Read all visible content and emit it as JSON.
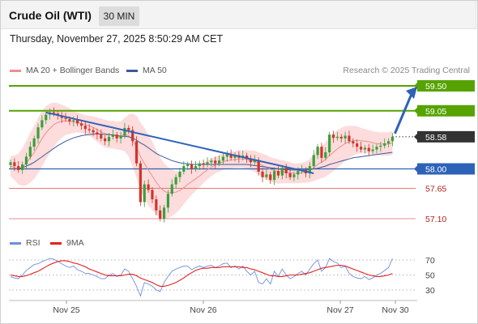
{
  "header": {
    "title": "Crude Oil (WTI)",
    "timeframe": "30 MIN"
  },
  "datetime": "Thursday, November 27, 2025 8:50:29 AM CET",
  "legend": {
    "ma20": "MA 20 + Bollinger Bands",
    "ma50": "MA 50",
    "credit": "Research © 2025 Trading Central"
  },
  "rsi_legend": {
    "rsi": "RSI",
    "ma9": "9MA"
  },
  "colors": {
    "resistance": "#56a300",
    "support": "#2e62b8",
    "secondary": "#e06666",
    "current": "#333333",
    "bull": "#3c9e3c",
    "bear": "#d0342c",
    "ma20": "#ee8f8f",
    "ma50": "#3d5a99",
    "band": "#fbd3d3",
    "rsi": "#6d8ede",
    "rsi_ma": "#e22222",
    "arrow": "#2e62b8"
  },
  "chart_data": {
    "type": "candlestick",
    "price_range": [
      56.9,
      59.7
    ],
    "levels": [
      {
        "label": "59.50",
        "value": 59.5,
        "kind": "resistance"
      },
      {
        "label": "59.05",
        "value": 59.05,
        "kind": "resistance"
      },
      {
        "label": "58.58",
        "value": 58.58,
        "kind": "current"
      },
      {
        "label": "58.00",
        "value": 58.0,
        "kind": "support"
      },
      {
        "label": "57.65",
        "value": 57.65,
        "kind": "secondary"
      },
      {
        "label": "57.10",
        "value": 57.1,
        "kind": "secondary"
      }
    ],
    "x_labels": [
      "Nov 25",
      "Nov 26",
      "Nov 27",
      "Nov 30"
    ],
    "closes": [
      58.12,
      58.05,
      57.98,
      58.08,
      58.22,
      58.4,
      58.55,
      58.75,
      58.88,
      58.98,
      59.02,
      59.0,
      58.96,
      58.92,
      58.9,
      58.86,
      58.88,
      58.82,
      58.78,
      58.72,
      58.7,
      58.66,
      58.62,
      58.55,
      58.5,
      58.58,
      58.62,
      58.55,
      58.6,
      58.74,
      58.7,
      58.5,
      58.1,
      57.4,
      57.72,
      57.62,
      57.45,
      57.25,
      57.1,
      57.3,
      57.55,
      57.72,
      57.85,
      57.95,
      58.05,
      58.08,
      58.0,
      58.05,
      58.1,
      58.08,
      58.12,
      58.15,
      58.1,
      58.15,
      58.22,
      58.26,
      58.2,
      58.25,
      58.2,
      58.24,
      58.18,
      58.12,
      58.16,
      57.95,
      57.85,
      57.9,
      57.8,
      57.96,
      57.88,
      58.02,
      57.92,
      57.85,
      57.9,
      57.96,
      57.98,
      57.92,
      58.05,
      58.25,
      58.4,
      58.2,
      58.3,
      58.62,
      58.56,
      58.58,
      58.55,
      58.6,
      58.5,
      58.46,
      58.4,
      58.35,
      58.38,
      58.32,
      58.35,
      58.4,
      58.42,
      58.46,
      58.5,
      58.58
    ],
    "ma20": [
      58.05,
      58.02,
      58.0,
      58.03,
      58.1,
      58.2,
      58.3,
      58.42,
      58.55,
      58.65,
      58.73,
      58.8,
      58.84,
      58.86,
      58.87,
      58.86,
      58.85,
      58.84,
      58.82,
      58.8,
      58.78,
      58.75,
      58.71,
      58.67,
      58.64,
      58.62,
      58.62,
      58.6,
      58.6,
      58.62,
      58.6,
      58.52,
      58.4,
      58.22,
      58.1,
      57.98,
      57.87,
      57.76,
      57.66,
      57.6,
      57.57,
      57.57,
      57.58,
      57.61,
      57.66,
      57.72,
      57.77,
      57.82,
      57.87,
      57.93,
      57.98,
      58.03,
      58.07,
      58.1,
      58.13,
      58.15,
      58.16,
      58.17,
      58.18,
      58.18,
      58.17,
      58.15,
      58.14,
      58.1,
      58.06,
      58.03,
      57.99,
      57.97,
      57.95,
      57.95,
      57.94,
      57.93,
      57.92,
      57.92,
      57.93,
      57.94,
      57.97,
      58.02,
      58.08,
      58.12,
      58.17,
      58.24,
      58.3,
      58.36,
      58.41,
      58.46,
      58.49,
      58.51,
      58.52,
      58.51,
      58.5,
      58.49,
      58.47,
      58.46,
      58.45,
      58.45,
      58.45,
      58.47
    ],
    "bb_width": [
      0.18,
      0.22,
      0.28,
      0.34,
      0.4,
      0.45,
      0.48,
      0.5,
      0.5,
      0.48,
      0.45,
      0.4,
      0.35,
      0.3,
      0.26,
      0.23,
      0.2,
      0.18,
      0.17,
      0.17,
      0.18,
      0.2,
      0.22,
      0.24,
      0.25,
      0.25,
      0.25,
      0.25,
      0.26,
      0.3,
      0.38,
      0.48,
      0.56,
      0.62,
      0.64,
      0.64,
      0.62,
      0.58,
      0.55,
      0.5,
      0.46,
      0.42,
      0.38,
      0.34,
      0.3,
      0.27,
      0.24,
      0.22,
      0.2,
      0.18,
      0.17,
      0.16,
      0.15,
      0.15,
      0.15,
      0.15,
      0.15,
      0.15,
      0.16,
      0.16,
      0.17,
      0.18,
      0.19,
      0.2,
      0.21,
      0.22,
      0.22,
      0.22,
      0.22,
      0.21,
      0.2,
      0.19,
      0.18,
      0.18,
      0.18,
      0.19,
      0.21,
      0.24,
      0.27,
      0.29,
      0.31,
      0.33,
      0.34,
      0.34,
      0.33,
      0.31,
      0.29,
      0.27,
      0.25,
      0.23,
      0.22,
      0.21,
      0.21,
      0.21,
      0.21,
      0.21,
      0.21,
      0.22
    ],
    "ma50": [
      58.0,
      58.0,
      58.0,
      58.02,
      58.05,
      58.08,
      58.12,
      58.17,
      58.22,
      58.27,
      58.32,
      58.37,
      58.42,
      58.46,
      58.5,
      58.53,
      58.56,
      58.58,
      58.6,
      58.61,
      58.62,
      58.63,
      58.63,
      58.63,
      58.62,
      58.62,
      58.61,
      58.6,
      58.59,
      58.59,
      58.58,
      58.56,
      58.52,
      58.47,
      58.43,
      58.38,
      58.33,
      58.28,
      58.24,
      58.21,
      58.18,
      58.15,
      58.13,
      58.11,
      58.1,
      58.09,
      58.08,
      58.08,
      58.08,
      58.08,
      58.08,
      58.08,
      58.08,
      58.08,
      58.08,
      58.08,
      58.08,
      58.08,
      58.08,
      58.08,
      58.08,
      58.07,
      58.06,
      58.05,
      58.04,
      58.03,
      58.02,
      58.01,
      58.0,
      57.99,
      57.99,
      57.98,
      57.98,
      57.98,
      57.98,
      57.98,
      57.99,
      58.0,
      58.01,
      58.03,
      58.05,
      58.08,
      58.1,
      58.12,
      58.14,
      58.16,
      58.18,
      58.2,
      58.21,
      58.22,
      58.23,
      58.24,
      58.25,
      58.26,
      58.27,
      58.28,
      58.29,
      58.3
    ],
    "trendline": {
      "from": [
        9,
        59.02
      ],
      "to": [
        77,
        57.92
      ]
    },
    "projection_target": 59.5,
    "rsi": {
      "levels": [
        70,
        50,
        30
      ],
      "values": [
        48,
        46,
        45,
        50,
        56,
        60,
        64,
        65,
        68,
        70,
        72,
        71,
        68,
        65,
        62,
        60,
        62,
        57,
        55,
        52,
        52,
        50,
        48,
        45,
        45,
        50,
        52,
        48,
        50,
        58,
        55,
        45,
        35,
        22,
        40,
        38,
        35,
        30,
        28,
        40,
        48,
        55,
        58,
        60,
        62,
        62,
        57,
        60,
        62,
        60,
        62,
        63,
        60,
        62,
        65,
        66,
        60,
        62,
        58,
        62,
        55,
        50,
        55,
        40,
        38,
        45,
        38,
        55,
        48,
        58,
        50,
        45,
        48,
        52,
        55,
        50,
        58,
        65,
        70,
        55,
        60,
        72,
        68,
        66,
        60,
        62,
        52,
        48,
        46,
        45,
        48,
        44,
        46,
        50,
        52,
        56,
        60,
        72
      ],
      "ma": [
        50,
        49,
        48,
        48,
        49,
        51,
        53,
        55,
        58,
        61,
        64,
        66,
        68,
        69,
        69,
        68,
        66,
        65,
        63,
        61,
        58,
        56,
        54,
        52,
        50,
        49,
        49,
        49,
        49,
        50,
        51,
        51,
        49,
        46,
        44,
        42,
        40,
        37,
        35,
        35,
        36,
        38,
        40,
        43,
        46,
        50,
        53,
        56,
        58,
        59,
        59,
        60,
        60,
        60,
        61,
        61,
        61,
        61,
        61,
        60,
        60,
        58,
        57,
        55,
        53,
        51,
        49,
        49,
        48,
        48,
        49,
        50,
        50,
        50,
        51,
        52,
        53,
        55,
        57,
        59,
        60,
        61,
        62,
        63,
        63,
        62,
        60,
        58,
        56,
        54,
        52,
        50,
        49,
        48,
        48,
        49,
        50,
        52
      ]
    }
  }
}
